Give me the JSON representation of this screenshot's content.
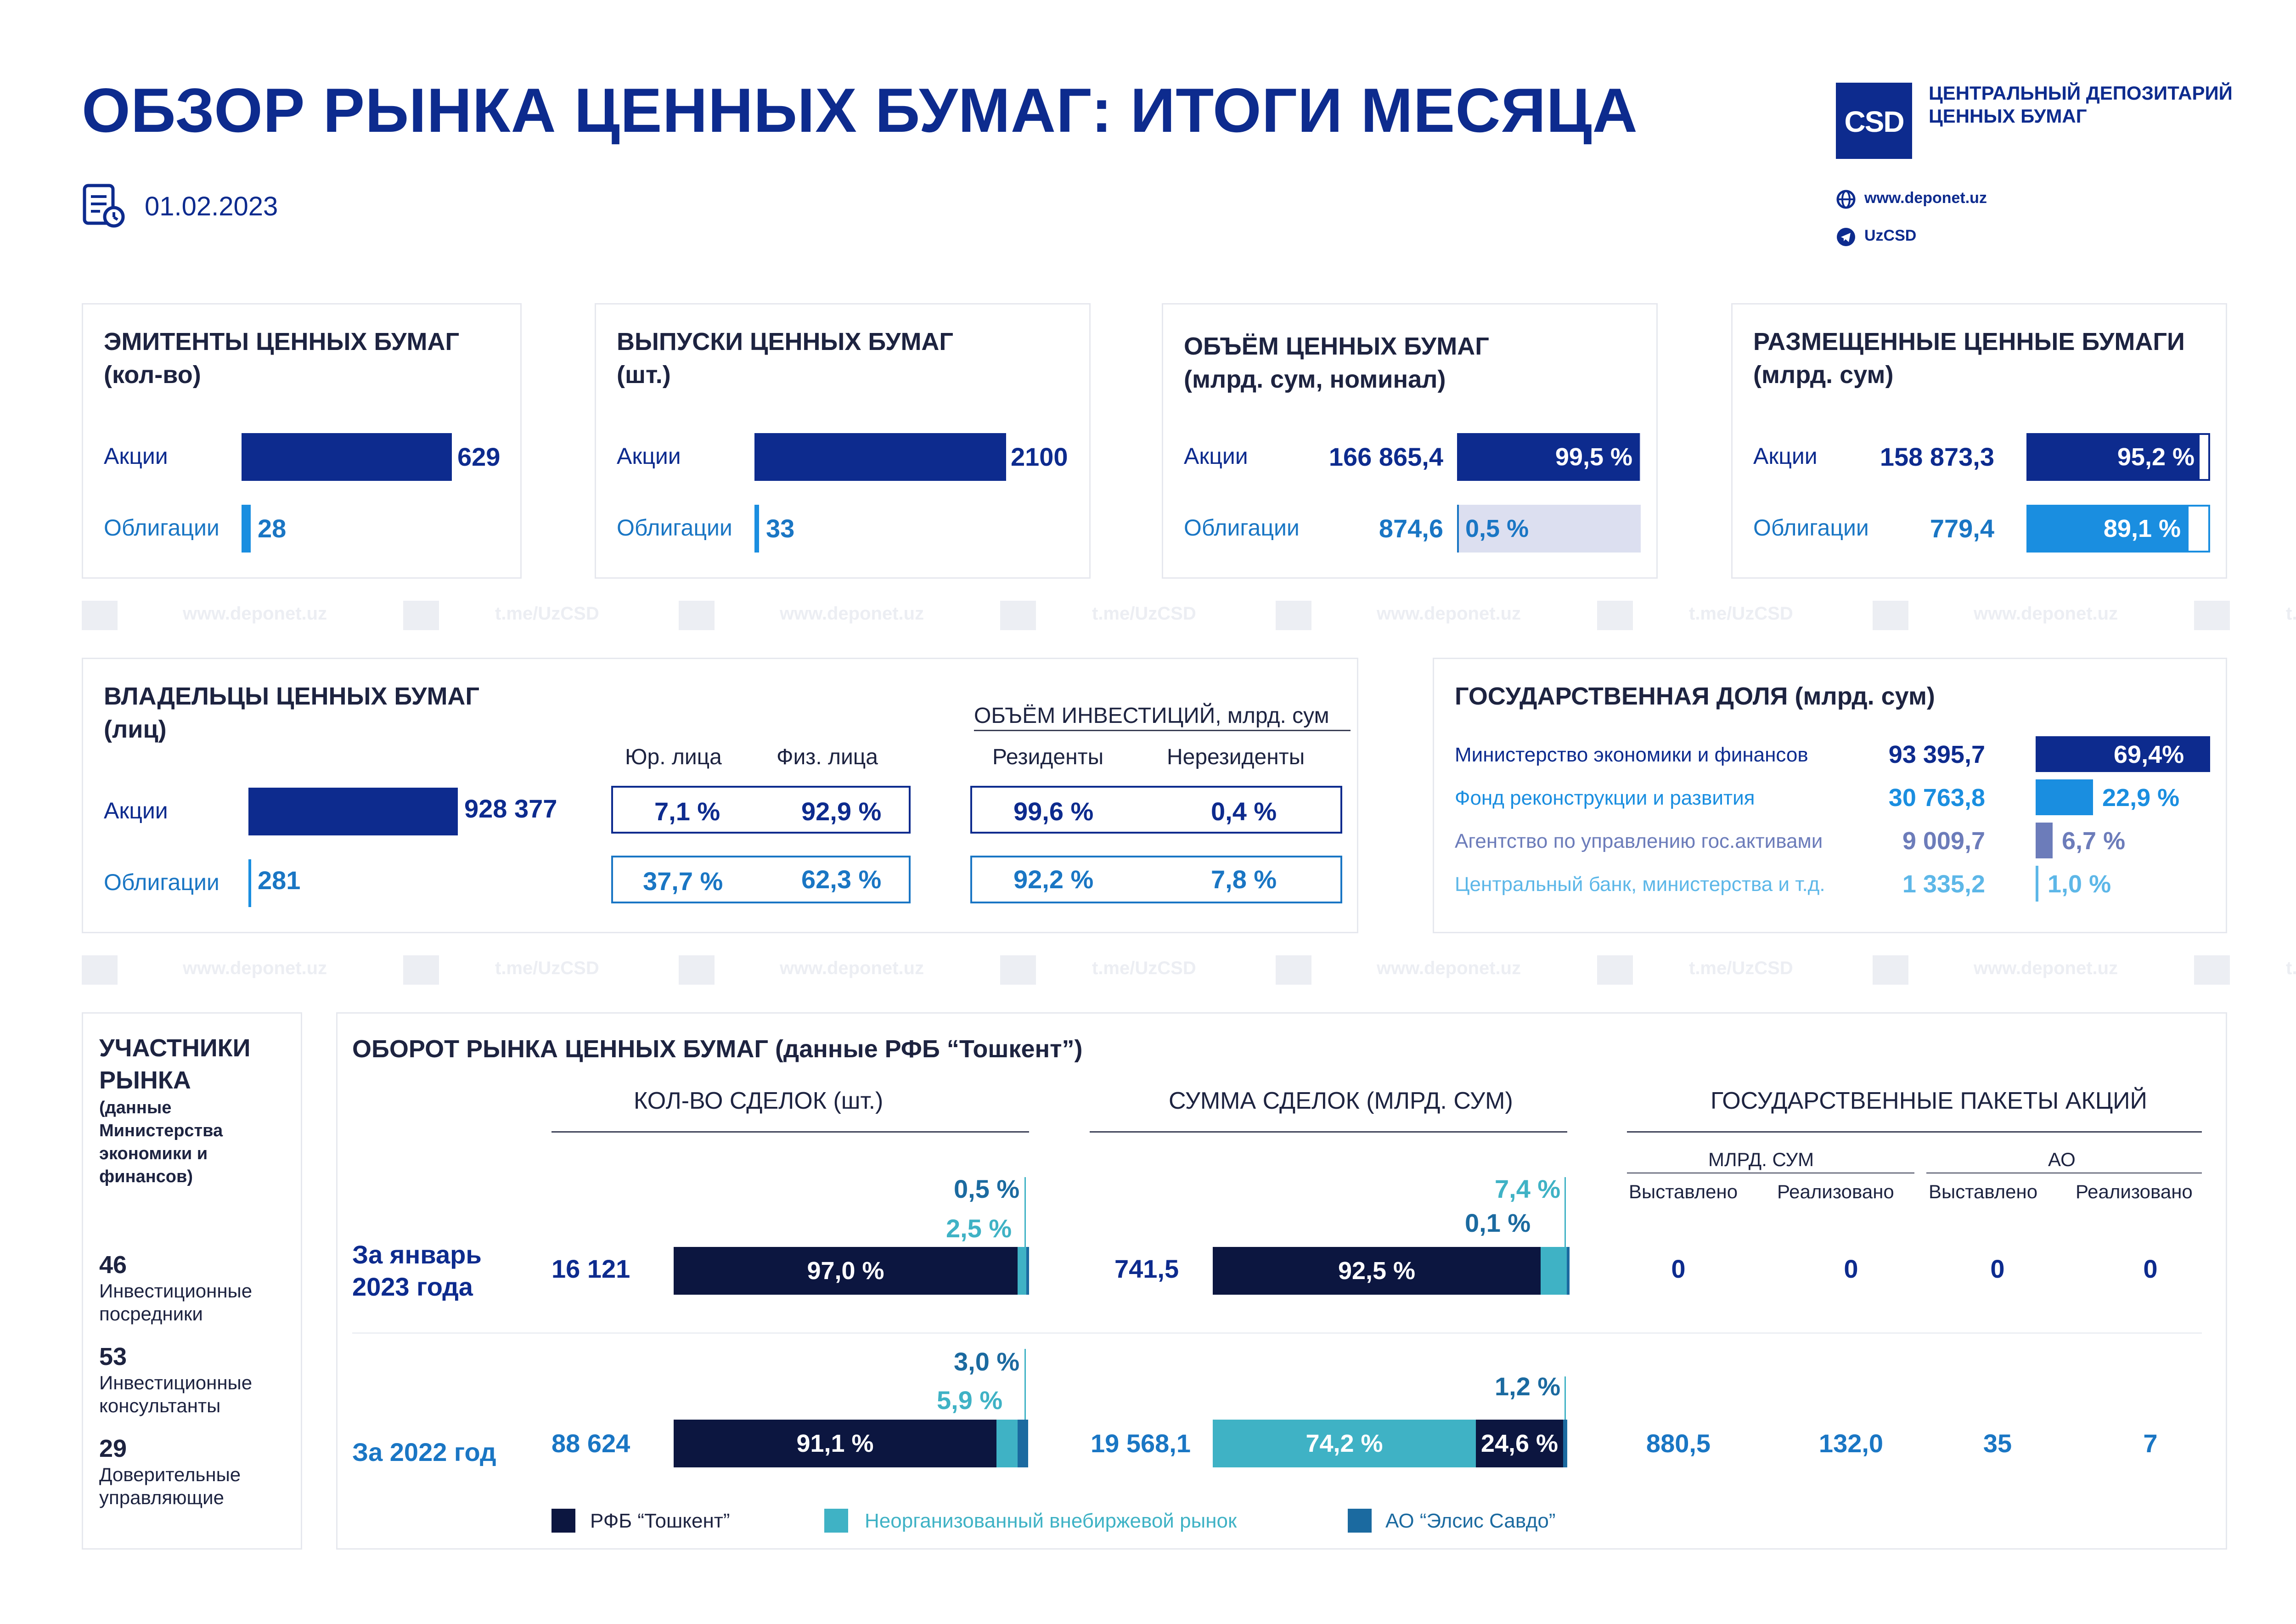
{
  "header": {
    "title": "ОБЗОР РЫНКА ЦЕННЫХ БУМАГ: ИТОГИ МЕСЯЦА",
    "date": "01.02.2023",
    "logo_text": "CSD",
    "org_line1": "ЦЕНТРАЛЬНЫЙ ДЕПОЗИТАРИЙ",
    "org_line2": "ЦЕННЫХ БУМАГ",
    "website": "www.deponet.uz",
    "telegram": "UzCSD"
  },
  "watermark": {
    "site": "www.deponet.uz",
    "tg": "t.me/UzCSD",
    "logo": "csd"
  },
  "issuers": {
    "title1": "ЭМИТЕНТЫ ЦЕННЫХ БУМАГ",
    "title2": "(кол-во)",
    "shares_label": "Акции",
    "shares_value": "629",
    "bonds_label": "Облигации",
    "bonds_value": "28"
  },
  "issues": {
    "title1": "ВЫПУСКИ ЦЕННЫХ БУМАГ",
    "title2": "(шт.)",
    "shares_label": "Акции",
    "shares_value": "2100",
    "bonds_label": "Облигации",
    "bonds_value": "33"
  },
  "volume": {
    "title1": "ОБЪЁМ ЦЕННЫХ БУМАГ",
    "title2": "(млрд. сум, номинал)",
    "shares_label": "Акции",
    "shares_value": "166 865,4",
    "shares_pct": "99,5 %",
    "shares_share": 0.995,
    "bonds_label": "Облигации",
    "bonds_value": "874,6",
    "bonds_pct": "0,5 %",
    "bonds_share": 0.005
  },
  "placed": {
    "title1": "РАЗМЕЩЕННЫЕ ЦЕННЫЕ БУМАГИ",
    "title2": "(млрд. сум)",
    "shares_label": "Акции",
    "shares_value": "158 873,3",
    "shares_pct": "95,2 %",
    "shares_share": 0.952,
    "bonds_label": "Облигации",
    "bonds_value": "779,4",
    "bonds_pct": "89,1 %",
    "bonds_share": 0.891
  },
  "owners": {
    "title1": "ВЛАДЕЛЬЦЫ ЦЕННЫХ БУМАГ",
    "title2": "(лиц)",
    "col_legal": "Юр. лица",
    "col_phys": "Физ. лица",
    "invest_title": "ОБЪЁМ ИНВЕСТИЦИЙ, млрд. сум",
    "col_res": "Резиденты",
    "col_nonres": "Нерезиденты",
    "shares_label": "Акции",
    "shares_value": "928 377",
    "shares_legal": "7,1 %",
    "shares_phys": "92,9 %",
    "shares_res": "99,6 %",
    "shares_nonres": "0,4 %",
    "bonds_label": "Облигации",
    "bonds_value": "281",
    "bonds_legal": "37,7 %",
    "bonds_phys": "62,3 %",
    "bonds_res": "92,2 %",
    "bonds_nonres": "7,8 %"
  },
  "state": {
    "title": "ГОСУДАРСТВЕННАЯ ДОЛЯ (млрд. сум)",
    "rows": [
      {
        "label": "Министерство экономики и финансов",
        "value": "93 395,7",
        "pct": "69,4%",
        "share": 0.694,
        "color": "#0d2b8e"
      },
      {
        "label": "Фонд реконструкции и развития",
        "value": "30 763,8",
        "pct": "22,9 %",
        "share": 0.229,
        "color": "#1a8ee0"
      },
      {
        "label": "Агентство по управлению гос.активами",
        "value": "9 009,7",
        "pct": "6,7 %",
        "share": 0.067,
        "color": "#6c7cba"
      },
      {
        "label": "Центральный банк, министерства и т.д.",
        "value": "1 335,2",
        "pct": "1,0 %",
        "share": 0.01,
        "color": "#5db7e8"
      }
    ]
  },
  "participants": {
    "title1": "УЧАСТНИКИ",
    "title2": "РЫНКА",
    "sub1": "(данные",
    "sub2": "Министерства",
    "sub3": "экономики и",
    "sub4": "финансов)",
    "items": [
      {
        "value": "46",
        "line1": "Инвестиционные",
        "line2": "посредники"
      },
      {
        "value": "53",
        "line1": "Инвестиционные",
        "line2": "консультанты"
      },
      {
        "value": "29",
        "line1": "Доверительные",
        "line2": "управляющие"
      }
    ]
  },
  "turnover": {
    "title": "ОБОРОТ РЫНКА ЦЕННЫХ БУМАГ (данные РФБ “Тошкент”)",
    "col_deals": "КОЛ-ВО СДЕЛОК (шт.)",
    "col_sum": "СУММА СДЕЛОК (МЛРД. СУМ)",
    "col_state": "ГОСУДАРСТВЕННЫЕ ПАКЕТЫ АКЦИЙ",
    "sub_bln": "МЛРД. СУМ",
    "sub_ao": "АО",
    "sub_offered": "Выставлено",
    "sub_sold": "Реализовано",
    "legend_rfb": "РФБ “Тошкент”",
    "legend_otc": "Неорганизованный внебиржевой рынок",
    "legend_elsis": "АО “Элсис Савдо”",
    "colors": {
      "rfb": "#0c1640",
      "otc": "#3fb2c5",
      "elsis": "#1b6aa0"
    },
    "jan": {
      "label1": "За январь",
      "label2": "2023 года",
      "deals": "16 121",
      "deals_rfb": "97,0 %",
      "deals_rfb_share": 0.97,
      "deals_otc": "2,5 %",
      "deals_otc_share": 0.025,
      "deals_elsis": "0,5 %",
      "deals_elsis_share": 0.005,
      "sum": "741,5",
      "sum_rfb": "92,5 %",
      "sum_rfb_share": 0.925,
      "sum_otc": "7,4 %",
      "sum_otc_share": 0.074,
      "sum_elsis": "0,1 %",
      "sum_elsis_share": 0.001,
      "bln_offered": "0",
      "bln_sold": "0",
      "ao_offered": "0",
      "ao_sold": "0"
    },
    "y2022": {
      "label": "За 2022 год",
      "deals": "88 624",
      "deals_rfb": "91,1 %",
      "deals_rfb_share": 0.911,
      "deals_otc": "5,9 %",
      "deals_otc_share": 0.059,
      "deals_elsis": "3,0 %",
      "deals_elsis_share": 0.03,
      "sum": "19 568,1",
      "sum_otc": "74,2 %",
      "sum_otc_share": 0.742,
      "sum_rfb": "24,6 %",
      "sum_rfb_share": 0.246,
      "sum_elsis": "1,2 %",
      "sum_elsis_share": 0.012,
      "bln_offered": "880,5",
      "bln_sold": "132,0",
      "ao_offered": "35",
      "ao_sold": "7"
    }
  }
}
